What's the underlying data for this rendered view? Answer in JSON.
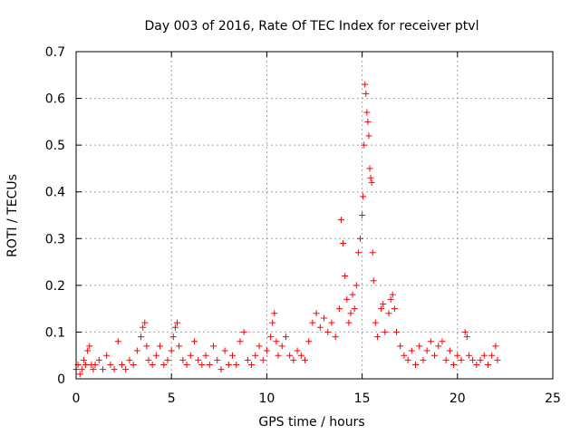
{
  "chart_data": {
    "type": "scatter",
    "title": "Day 003 of 2016, Rate Of TEC Index for receiver ptvl",
    "xlabel": "GPS time / hours",
    "ylabel": "ROTI / TECUs",
    "xlim": [
      0,
      25
    ],
    "ylim": [
      0,
      0.7
    ],
    "x_ticks": [
      0,
      5,
      10,
      15,
      20,
      25
    ],
    "x_tick_labels": [
      "0",
      "5",
      "10",
      "15",
      "20",
      "25"
    ],
    "y_ticks": [
      0,
      0.1,
      0.2,
      0.3,
      0.4,
      0.5,
      0.6,
      0.7
    ],
    "y_tick_labels": [
      "0",
      "0.1",
      "0.2",
      "0.3",
      "0.4",
      "0.5",
      "0.6",
      "0.7"
    ],
    "grid": true,
    "marker": "+",
    "series": [
      {
        "name": "ROTI",
        "color": "#ff0000",
        "points": [
          [
            0.0,
            0.02
          ],
          [
            0.1,
            0.03
          ],
          [
            0.2,
            0.01
          ],
          [
            0.3,
            0.02
          ],
          [
            0.4,
            0.04
          ],
          [
            0.5,
            0.03
          ],
          [
            0.6,
            0.06
          ],
          [
            0.7,
            0.07
          ],
          [
            0.8,
            0.03
          ],
          [
            0.9,
            0.02
          ],
          [
            1.0,
            0.03
          ],
          [
            1.2,
            0.04
          ],
          [
            1.4,
            0.02
          ],
          [
            1.6,
            0.05
          ],
          [
            1.8,
            0.03
          ],
          [
            2.0,
            0.02
          ],
          [
            2.2,
            0.08
          ],
          [
            2.4,
            0.03
          ],
          [
            2.6,
            0.02
          ],
          [
            2.8,
            0.04
          ],
          [
            3.0,
            0.03
          ],
          [
            3.2,
            0.06
          ],
          [
            3.4,
            0.09
          ],
          [
            3.5,
            0.11
          ],
          [
            3.6,
            0.12
          ],
          [
            3.7,
            0.07
          ],
          [
            3.8,
            0.04
          ],
          [
            4.0,
            0.03
          ],
          [
            4.2,
            0.05
          ],
          [
            4.4,
            0.07
          ],
          [
            4.6,
            0.03
          ],
          [
            4.8,
            0.04
          ],
          [
            5.0,
            0.06
          ],
          [
            5.1,
            0.09
          ],
          [
            5.2,
            0.11
          ],
          [
            5.3,
            0.12
          ],
          [
            5.4,
            0.07
          ],
          [
            5.6,
            0.04
          ],
          [
            5.8,
            0.03
          ],
          [
            6.0,
            0.05
          ],
          [
            6.2,
            0.08
          ],
          [
            6.4,
            0.04
          ],
          [
            6.6,
            0.03
          ],
          [
            6.8,
            0.05
          ],
          [
            7.0,
            0.03
          ],
          [
            7.2,
            0.07
          ],
          [
            7.4,
            0.04
          ],
          [
            7.6,
            0.02
          ],
          [
            7.8,
            0.06
          ],
          [
            8.0,
            0.03
          ],
          [
            8.2,
            0.05
          ],
          [
            8.4,
            0.03
          ],
          [
            8.6,
            0.08
          ],
          [
            8.8,
            0.1
          ],
          [
            9.0,
            0.04
          ],
          [
            9.2,
            0.03
          ],
          [
            9.4,
            0.05
          ],
          [
            9.6,
            0.07
          ],
          [
            9.8,
            0.04
          ],
          [
            10.0,
            0.06
          ],
          [
            10.2,
            0.09
          ],
          [
            10.3,
            0.12
          ],
          [
            10.4,
            0.14
          ],
          [
            10.5,
            0.08
          ],
          [
            10.6,
            0.05
          ],
          [
            10.8,
            0.07
          ],
          [
            11.0,
            0.09
          ],
          [
            11.2,
            0.05
          ],
          [
            11.4,
            0.04
          ],
          [
            11.6,
            0.06
          ],
          [
            11.8,
            0.05
          ],
          [
            12.0,
            0.04
          ],
          [
            12.2,
            0.08
          ],
          [
            12.4,
            0.12
          ],
          [
            12.6,
            0.14
          ],
          [
            12.8,
            0.11
          ],
          [
            13.0,
            0.13
          ],
          [
            13.2,
            0.1
          ],
          [
            13.4,
            0.12
          ],
          [
            13.6,
            0.09
          ],
          [
            13.8,
            0.15
          ],
          [
            13.9,
            0.34
          ],
          [
            14.0,
            0.29
          ],
          [
            14.1,
            0.22
          ],
          [
            14.2,
            0.17
          ],
          [
            14.3,
            0.12
          ],
          [
            14.4,
            0.14
          ],
          [
            14.5,
            0.18
          ],
          [
            14.6,
            0.15
          ],
          [
            14.7,
            0.2
          ],
          [
            14.8,
            0.27
          ],
          [
            14.9,
            0.3
          ],
          [
            15.0,
            0.35
          ],
          [
            15.05,
            0.39
          ],
          [
            15.1,
            0.5
          ],
          [
            15.15,
            0.63
          ],
          [
            15.2,
            0.61
          ],
          [
            15.25,
            0.57
          ],
          [
            15.3,
            0.55
          ],
          [
            15.35,
            0.52
          ],
          [
            15.4,
            0.45
          ],
          [
            15.45,
            0.43
          ],
          [
            15.5,
            0.42
          ],
          [
            15.55,
            0.27
          ],
          [
            15.6,
            0.21
          ],
          [
            15.7,
            0.12
          ],
          [
            15.8,
            0.09
          ],
          [
            16.0,
            0.15
          ],
          [
            16.1,
            0.16
          ],
          [
            16.2,
            0.1
          ],
          [
            16.4,
            0.14
          ],
          [
            16.5,
            0.17
          ],
          [
            16.6,
            0.18
          ],
          [
            16.7,
            0.15
          ],
          [
            16.8,
            0.1
          ],
          [
            17.0,
            0.07
          ],
          [
            17.2,
            0.05
          ],
          [
            17.4,
            0.04
          ],
          [
            17.6,
            0.06
          ],
          [
            17.8,
            0.03
          ],
          [
            18.0,
            0.07
          ],
          [
            18.2,
            0.04
          ],
          [
            18.4,
            0.06
          ],
          [
            18.6,
            0.08
          ],
          [
            18.8,
            0.05
          ],
          [
            19.0,
            0.07
          ],
          [
            19.2,
            0.08
          ],
          [
            19.4,
            0.04
          ],
          [
            19.6,
            0.06
          ],
          [
            19.8,
            0.03
          ],
          [
            20.0,
            0.05
          ],
          [
            20.2,
            0.04
          ],
          [
            20.4,
            0.1
          ],
          [
            20.5,
            0.09
          ],
          [
            20.6,
            0.05
          ],
          [
            20.8,
            0.04
          ],
          [
            21.0,
            0.03
          ],
          [
            21.2,
            0.04
          ],
          [
            21.4,
            0.05
          ],
          [
            21.6,
            0.03
          ],
          [
            21.8,
            0.05
          ],
          [
            22.0,
            0.07
          ],
          [
            22.1,
            0.04
          ]
        ]
      }
    ]
  }
}
